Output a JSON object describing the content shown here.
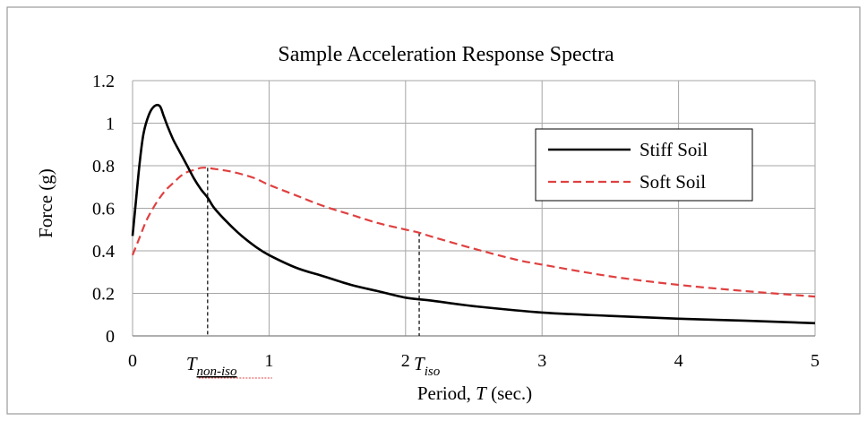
{
  "chart_data": {
    "type": "line",
    "title": "Sample Acceleration Response Spectra",
    "xlabel": {
      "prefix": "Period, ",
      "var": "T",
      "suffix": " (sec.)"
    },
    "ylabel": "Force (g)",
    "xlim": [
      0,
      5
    ],
    "ylim": [
      0,
      1.2
    ],
    "xticks": [
      0,
      1,
      2,
      3,
      4,
      5
    ],
    "yticks": [
      0,
      0.2,
      0.4,
      0.6,
      0.8,
      1,
      1.2
    ],
    "ytick_labels": [
      "0",
      "0.2",
      "0.4",
      "0.6",
      "0.8",
      "1",
      "1.2"
    ],
    "grid": true,
    "legend_position": "upper-right",
    "series": [
      {
        "name": "Stiff Soil",
        "color": "#000000",
        "style": "solid",
        "x": [
          0,
          0.02,
          0.05,
          0.08,
          0.12,
          0.16,
          0.2,
          0.23,
          0.26,
          0.3,
          0.35,
          0.4,
          0.45,
          0.5,
          0.55,
          0.6,
          0.7,
          0.8,
          0.9,
          1.0,
          1.2,
          1.4,
          1.6,
          1.8,
          2.0,
          2.2,
          2.5,
          3.0,
          3.5,
          4.0,
          4.5,
          5.0
        ],
        "y": [
          0.47,
          0.6,
          0.8,
          0.95,
          1.04,
          1.08,
          1.08,
          1.03,
          0.98,
          0.92,
          0.86,
          0.8,
          0.74,
          0.69,
          0.65,
          0.6,
          0.53,
          0.47,
          0.42,
          0.38,
          0.32,
          0.28,
          0.24,
          0.21,
          0.18,
          0.165,
          0.14,
          0.11,
          0.094,
          0.081,
          0.071,
          0.06
        ]
      },
      {
        "name": "Soft Soil",
        "color": "#e04040",
        "style": "dashed",
        "x": [
          0,
          0.05,
          0.1,
          0.15,
          0.2,
          0.25,
          0.3,
          0.35,
          0.4,
          0.45,
          0.5,
          0.55,
          0.6,
          0.7,
          0.8,
          0.9,
          1.0,
          1.2,
          1.4,
          1.6,
          1.8,
          2.0,
          2.1,
          2.2,
          2.5,
          2.8,
          3.0,
          3.5,
          4.0,
          4.5,
          5.0
        ],
        "y": [
          0.38,
          0.46,
          0.54,
          0.6,
          0.65,
          0.69,
          0.72,
          0.75,
          0.77,
          0.78,
          0.79,
          0.79,
          0.785,
          0.775,
          0.76,
          0.74,
          0.71,
          0.66,
          0.61,
          0.57,
          0.53,
          0.5,
          0.485,
          0.465,
          0.41,
          0.36,
          0.335,
          0.28,
          0.24,
          0.21,
          0.185
        ]
      }
    ],
    "annotations": [
      {
        "base": "T",
        "sub": "non-iso",
        "x": 0.55,
        "y": 0.79,
        "style": "dashed-vertical"
      },
      {
        "base": "T",
        "sub": "iso",
        "x": 2.1,
        "y": 0.485,
        "style": "dashed-vertical"
      }
    ]
  }
}
